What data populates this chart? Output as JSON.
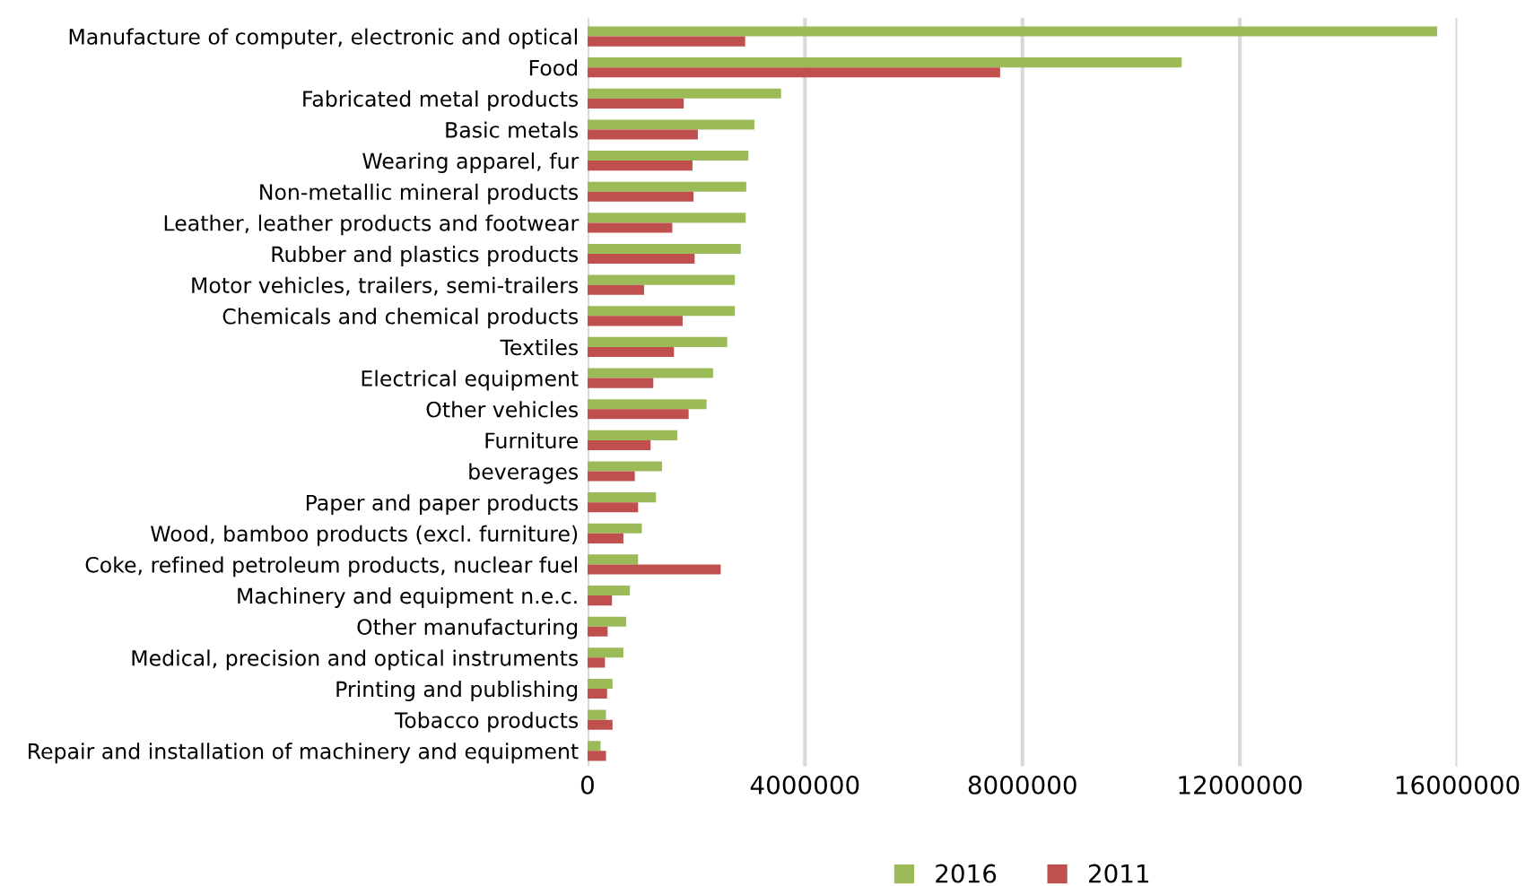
{
  "chart_data": {
    "type": "bar",
    "orientation": "horizontal",
    "categories": [
      "Manufacture of computer, electronic and optical",
      "Food",
      "Fabricated metal products",
      "Basic metals",
      "Wearing apparel, fur",
      "Non-metallic mineral products",
      "Leather, leather products and footwear",
      "Rubber and plastics products",
      "Motor vehicles, trailers, semi-trailers",
      "Chemicals and chemical products",
      "Textiles",
      "Electrical equipment",
      "Other vehicles",
      "Furniture",
      "beverages",
      "Paper and paper products",
      "Wood, bamboo products (excl. furniture)",
      "Coke, refined petroleum products, nuclear fuel",
      "Machinery and equipment n.e.c.",
      "Other manufacturing",
      "Medical, precision and optical instruments",
      "Printing and publishing",
      "Tobacco products",
      "Repair and installation of machinery and equipment"
    ],
    "series": [
      {
        "name": "2016",
        "color": "#9bbb59",
        "values": [
          15630000,
          10930000,
          3560000,
          3070000,
          2960000,
          2920000,
          2910000,
          2820000,
          2710000,
          2710000,
          2570000,
          2310000,
          2190000,
          1650000,
          1370000,
          1260000,
          1000000,
          930000,
          780000,
          710000,
          660000,
          460000,
          340000,
          240000
        ]
      },
      {
        "name": "2011",
        "color": "#c0504d",
        "values": [
          2900000,
          7590000,
          1770000,
          2030000,
          1930000,
          1950000,
          1560000,
          1970000,
          1040000,
          1750000,
          1590000,
          1210000,
          1860000,
          1160000,
          870000,
          930000,
          660000,
          2450000,
          450000,
          370000,
          320000,
          360000,
          460000,
          340000
        ]
      }
    ],
    "xlim": [
      0,
      16000000
    ],
    "xticks": [
      0,
      4000000,
      8000000,
      12000000,
      16000000
    ],
    "grid": "x",
    "legend": "bottom"
  }
}
